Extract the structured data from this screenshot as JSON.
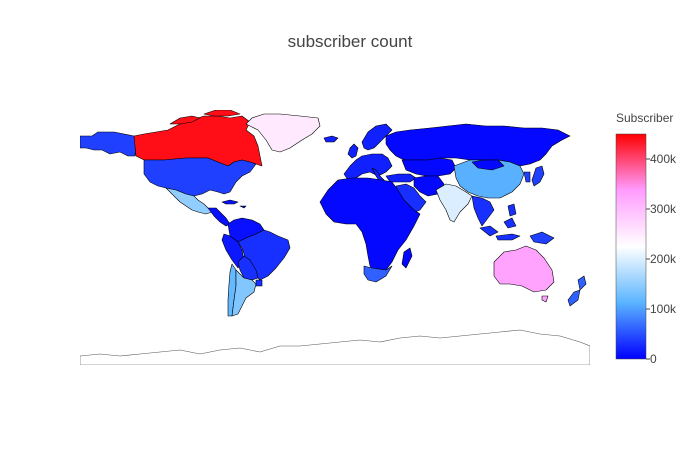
{
  "title": "subscriber count",
  "colorbar": {
    "title": "Subscriber",
    "range": [
      0,
      450000
    ],
    "ticks": [
      {
        "value": 0,
        "label": "0"
      },
      {
        "value": 100000,
        "label": "100k"
      },
      {
        "value": 200000,
        "label": "200k"
      },
      {
        "value": 300000,
        "label": "300k"
      },
      {
        "value": 400000,
        "label": "400k"
      }
    ],
    "colorscale": [
      "#0000ff",
      "#5ab4ff",
      "#ffffff",
      "#ff9cff",
      "#ff0000"
    ]
  },
  "chart_data": {
    "type": "choropleth",
    "metric": "Subscriber",
    "regions": [
      {
        "name": "Canada",
        "value": 440000
      },
      {
        "name": "United States",
        "value": 40000
      },
      {
        "name": "Alaska",
        "value": 40000
      },
      {
        "name": "Greenland",
        "value": 250000
      },
      {
        "name": "Mexico",
        "value": 150000
      },
      {
        "name": "Central America",
        "value": 10000
      },
      {
        "name": "Brazil",
        "value": 30000
      },
      {
        "name": "Argentina",
        "value": 140000
      },
      {
        "name": "Colombia",
        "value": 10000
      },
      {
        "name": "Peru",
        "value": 15000
      },
      {
        "name": "Chile",
        "value": 120000
      },
      {
        "name": "Russia",
        "value": 5000
      },
      {
        "name": "China",
        "value": 110000
      },
      {
        "name": "India",
        "value": 200000
      },
      {
        "name": "Australia",
        "value": 330000
      },
      {
        "name": "Africa",
        "value": 5000
      },
      {
        "name": "South Africa",
        "value": 60000
      },
      {
        "name": "Saudi Arabia",
        "value": 30000
      },
      {
        "name": "Europe",
        "value": 20000
      },
      {
        "name": "Southeast Asia",
        "value": 30000
      },
      {
        "name": "Japan",
        "value": 40000
      },
      {
        "name": "New Zealand",
        "value": 60000
      },
      {
        "name": "Antarctica",
        "value": null
      }
    ]
  }
}
